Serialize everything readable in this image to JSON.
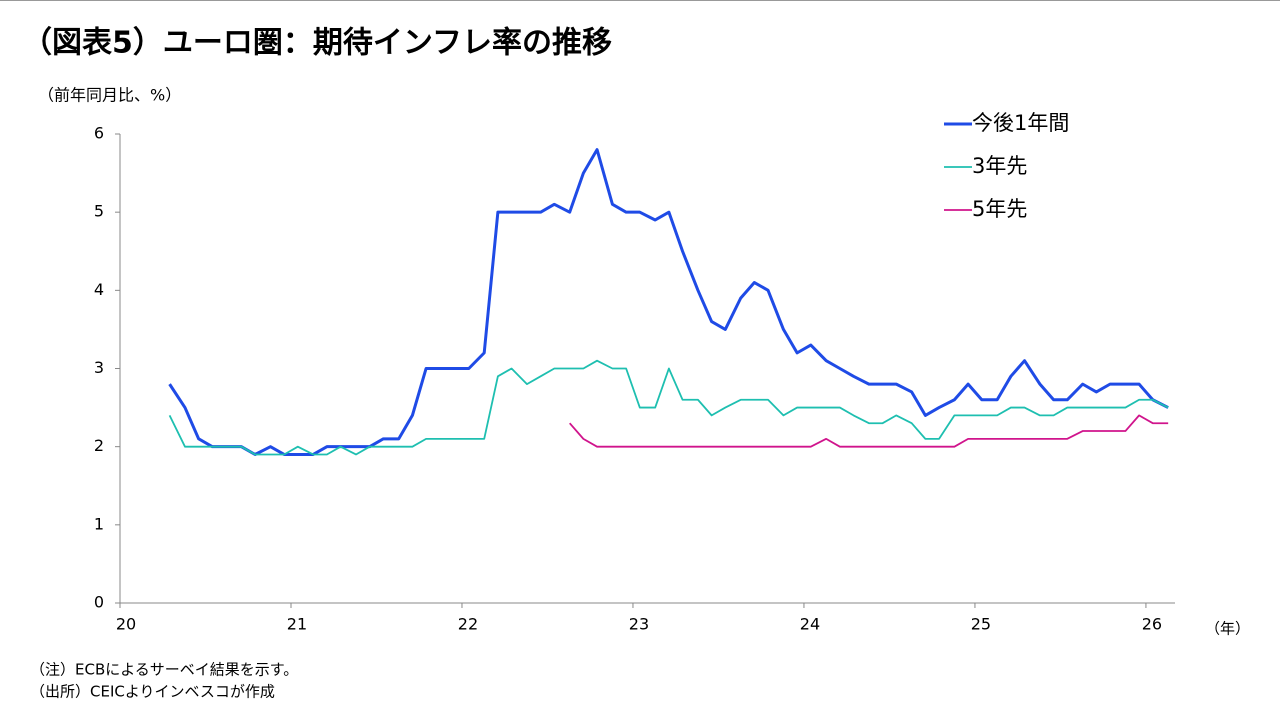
{
  "chart_data": {
    "type": "line",
    "title": "（図表5）ユーロ圏：期待インフレ率の推移",
    "y_label": "（前年同月比、%）",
    "x_label": "（年）",
    "notes": [
      "（注）ECBによるサーベイ結果を示す。",
      "（出所）CEICよりインベスコが作成"
    ],
    "x": [
      20.29,
      20.38,
      20.46,
      20.54,
      20.63,
      20.71,
      20.79,
      20.88,
      20.96,
      21.04,
      21.13,
      21.21,
      21.29,
      21.38,
      21.46,
      21.54,
      21.63,
      21.71,
      21.79,
      21.88,
      21.96,
      22.04,
      22.13,
      22.21,
      22.29,
      22.38,
      22.46,
      22.54,
      22.63,
      22.71,
      22.79,
      22.88,
      22.96,
      23.04,
      23.13,
      23.21,
      23.29,
      23.38,
      23.46,
      23.54,
      23.63,
      23.71,
      23.79,
      23.88,
      23.96,
      24.04,
      24.13,
      24.21,
      24.29,
      24.38,
      24.46,
      24.54,
      24.63,
      24.71,
      24.79,
      24.88,
      24.96,
      25.04,
      25.13,
      25.21,
      25.29,
      25.38,
      25.46,
      25.54,
      25.63,
      25.71,
      25.79,
      25.88,
      25.96,
      26.04,
      26.13
    ],
    "series": [
      {
        "name": "今後1年間",
        "color": "#1f4be6",
        "width": 3,
        "values": [
          2.8,
          2.5,
          2.1,
          2.0,
          2.0,
          2.0,
          1.9,
          2.0,
          1.9,
          1.9,
          1.9,
          2.0,
          2.0,
          2.0,
          2.0,
          2.1,
          2.1,
          2.4,
          3.0,
          3.0,
          3.0,
          3.0,
          3.2,
          5.0,
          5.0,
          5.0,
          5.0,
          5.1,
          5.0,
          5.5,
          5.8,
          5.1,
          5.0,
          5.0,
          4.9,
          5.0,
          4.5,
          4.0,
          3.6,
          3.5,
          3.9,
          4.1,
          4.0,
          3.5,
          3.2,
          3.3,
          3.1,
          3.0,
          2.9,
          2.8,
          2.8,
          2.8,
          2.7,
          2.4,
          2.5,
          2.6,
          2.8,
          2.6,
          2.6,
          2.9,
          3.1,
          2.8,
          2.6,
          2.6,
          2.8,
          2.7,
          2.8,
          2.8,
          2.8,
          2.6,
          2.5
        ]
      },
      {
        "name": "3年先",
        "color": "#1ebfb0",
        "width": 1.8,
        "values": [
          2.4,
          2.0,
          2.0,
          2.0,
          2.0,
          2.0,
          1.9,
          1.9,
          1.9,
          2.0,
          1.9,
          1.9,
          2.0,
          1.9,
          2.0,
          2.0,
          2.0,
          2.0,
          2.1,
          2.1,
          2.1,
          2.1,
          2.1,
          2.9,
          3.0,
          2.8,
          2.9,
          3.0,
          3.0,
          3.0,
          3.1,
          3.0,
          3.0,
          2.5,
          2.5,
          3.0,
          2.6,
          2.6,
          2.4,
          2.5,
          2.6,
          2.6,
          2.6,
          2.4,
          2.5,
          2.5,
          2.5,
          2.5,
          2.4,
          2.3,
          2.3,
          2.4,
          2.3,
          2.1,
          2.1,
          2.4,
          2.4,
          2.4,
          2.4,
          2.5,
          2.5,
          2.4,
          2.4,
          2.5,
          2.5,
          2.5,
          2.5,
          2.5,
          2.6,
          2.6,
          2.5
        ]
      },
      {
        "name": "5年先",
        "color": "#d0148c",
        "width": 1.8,
        "values": [
          null,
          null,
          null,
          null,
          null,
          null,
          null,
          null,
          null,
          null,
          null,
          null,
          null,
          null,
          null,
          null,
          null,
          null,
          null,
          null,
          null,
          null,
          null,
          null,
          null,
          null,
          null,
          null,
          2.3,
          2.1,
          2.0,
          2.0,
          2.0,
          2.0,
          2.0,
          2.0,
          2.0,
          2.0,
          2.0,
          2.0,
          2.0,
          2.0,
          2.0,
          2.0,
          2.0,
          2.0,
          2.1,
          2.0,
          2.0,
          2.0,
          2.0,
          2.0,
          2.0,
          2.0,
          2.0,
          2.0,
          2.1,
          2.1,
          2.1,
          2.1,
          2.1,
          2.1,
          2.1,
          2.1,
          2.2,
          2.2,
          2.2,
          2.2,
          2.4,
          2.3,
          2.3
        ]
      }
    ],
    "xlim": [
      20,
      26.17
    ],
    "xticks": [
      20,
      21,
      22,
      23,
      24,
      25,
      26
    ],
    "ylim": [
      0,
      6
    ],
    "yticks": [
      0,
      1,
      2,
      3,
      4,
      5,
      6
    ]
  }
}
